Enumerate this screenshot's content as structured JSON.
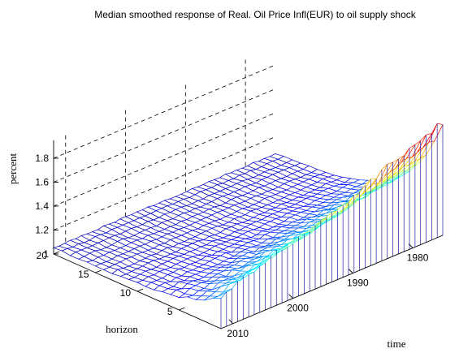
{
  "chart_data": {
    "type": "surface",
    "title": "Median smoothed response of Real. Oil Price Infl(EUR) to oil supply shock",
    "xlabel": "time",
    "ylabel": "horizon",
    "zlabel": "percent",
    "time_ticks": [
      "1980",
      "1990",
      "2000",
      "2010"
    ],
    "horizon_ticks": [
      "5",
      "10",
      "15",
      "20"
    ],
    "percent_ticks": [
      "1",
      "1.2",
      "1.4",
      "1.6",
      "1.8"
    ],
    "time_range": [
      1975,
      2012
    ],
    "horizon_range": [
      0,
      20
    ],
    "zlim": [
      1,
      1.95
    ],
    "grid": true,
    "colormap": "jet",
    "surface": {
      "note_peak_at_horizon_0_by_time": {
        "times": [
          1975,
          1980,
          1985,
          1990,
          1995,
          2000,
          2005,
          2010,
          2012
        ],
        "values": [
          1.95,
          1.85,
          1.75,
          1.62,
          1.55,
          1.48,
          1.4,
          1.3,
          1.25
        ]
      },
      "long_horizon_level": 1.05
    }
  }
}
